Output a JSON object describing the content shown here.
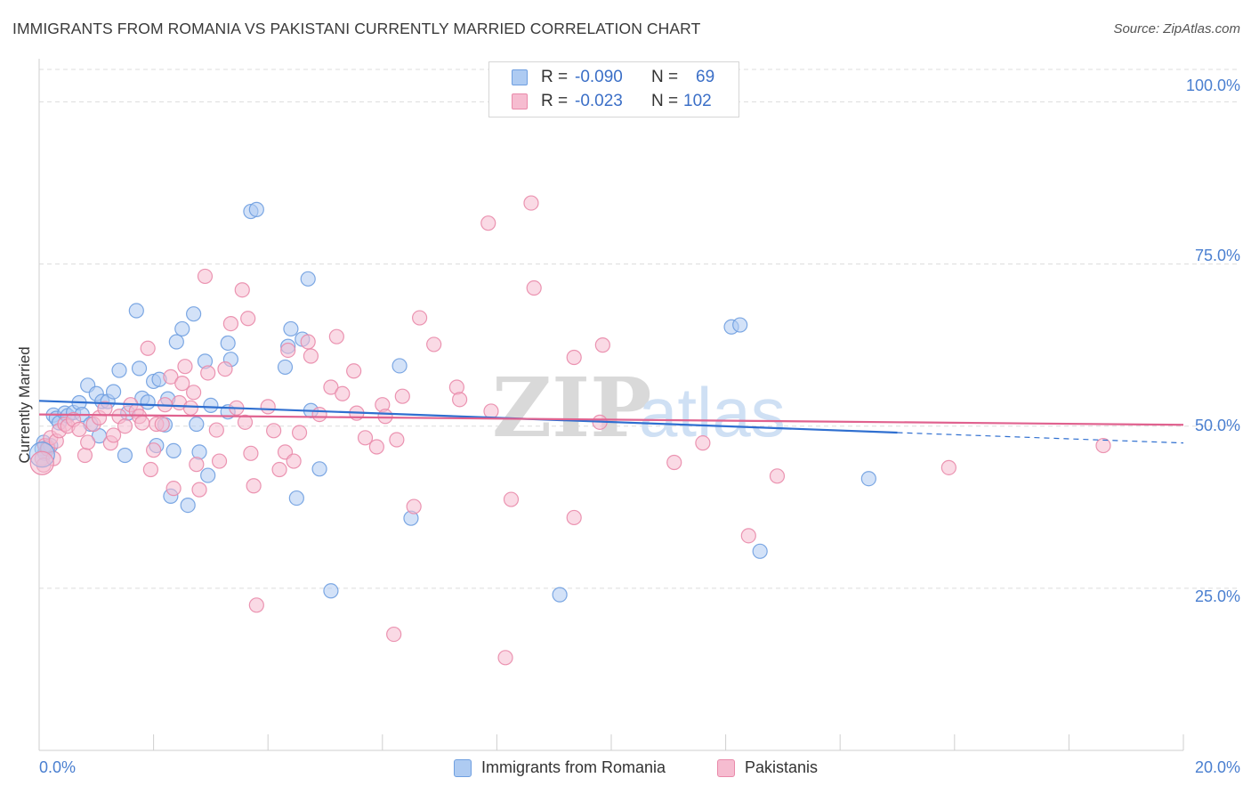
{
  "header": {
    "title": "IMMIGRANTS FROM ROMANIA VS PAKISTANI CURRENTLY MARRIED CORRELATION CHART",
    "source": "Source: ZipAtlas.com"
  },
  "legend": {
    "rows": [
      {
        "r_label": "R =",
        "r_value": "-0.090",
        "n_label": "N =",
        "n_value": "69"
      },
      {
        "r_label": "R =",
        "r_value": "-0.023",
        "n_label": "N =",
        "n_value": "102"
      }
    ]
  },
  "watermark": {
    "zip": "ZIP",
    "atlas": "atlas"
  },
  "colors": {
    "romania_fill": "#aecbf2",
    "romania_stroke": "#6f9fe0",
    "romania_line": "#2f6fd0",
    "pakistani_fill": "#f6bcd0",
    "pakistani_stroke": "#e98aaa",
    "pakistani_line": "#e0628f",
    "tick_label": "#4a7fd0",
    "grid": "#dcdcdc"
  },
  "chart_data": {
    "type": "scatter",
    "title": "IMMIGRANTS FROM ROMANIA VS PAKISTANI CURRENTLY MARRIED CORRELATION CHART",
    "xlabel": "",
    "ylabel": "Currently Married",
    "xlim": [
      0,
      20
    ],
    "ylim": [
      0,
      105
    ],
    "x_tick_labels": [
      "0.0%",
      "20.0%"
    ],
    "y_tick_labels": [
      "25.0%",
      "50.0%",
      "75.0%",
      "100.0%"
    ],
    "y_ticks": [
      25,
      50,
      75,
      100
    ],
    "grid": true,
    "legend_position": "top-center",
    "series": [
      {
        "name": "Immigrants from Romania",
        "R": -0.09,
        "N": 69,
        "trend": {
          "x": [
            0,
            15
          ],
          "y": [
            53.9,
            49.0
          ],
          "dashed_to": [
            20,
            47.4
          ]
        },
        "points": [
          [
            0.05,
            46.5
          ],
          [
            0.08,
            47.5
          ],
          [
            0.1,
            45.8
          ],
          [
            0.15,
            46.8
          ],
          [
            0.2,
            47.0
          ],
          [
            0.25,
            51.7
          ],
          [
            0.3,
            51.2
          ],
          [
            0.35,
            50.5
          ],
          [
            0.45,
            52.0
          ],
          [
            0.5,
            51.6
          ],
          [
            0.6,
            52.1
          ],
          [
            0.7,
            53.6
          ],
          [
            0.75,
            51.8
          ],
          [
            0.85,
            56.3
          ],
          [
            0.9,
            50.3
          ],
          [
            1.0,
            55.0
          ],
          [
            1.05,
            48.5
          ],
          [
            1.1,
            53.8
          ],
          [
            1.2,
            53.8
          ],
          [
            1.3,
            55.3
          ],
          [
            1.4,
            58.6
          ],
          [
            1.5,
            45.5
          ],
          [
            1.55,
            52.0
          ],
          [
            1.7,
            67.8
          ],
          [
            1.75,
            58.9
          ],
          [
            1.8,
            54.3
          ],
          [
            1.9,
            53.7
          ],
          [
            2.0,
            56.9
          ],
          [
            2.05,
            47.0
          ],
          [
            2.1,
            57.2
          ],
          [
            2.2,
            50.2
          ],
          [
            2.25,
            54.2
          ],
          [
            2.3,
            39.2
          ],
          [
            2.35,
            46.2
          ],
          [
            2.4,
            63.0
          ],
          [
            2.5,
            65.0
          ],
          [
            2.6,
            37.8
          ],
          [
            2.7,
            67.3
          ],
          [
            2.75,
            50.3
          ],
          [
            2.8,
            46.0
          ],
          [
            2.9,
            60.0
          ],
          [
            2.95,
            42.4
          ],
          [
            3.3,
            62.8
          ],
          [
            3.35,
            60.3
          ],
          [
            3.0,
            53.2
          ],
          [
            3.3,
            52.2
          ],
          [
            3.7,
            83.1
          ],
          [
            3.8,
            83.4
          ],
          [
            4.3,
            59.1
          ],
          [
            4.35,
            62.3
          ],
          [
            4.4,
            65.0
          ],
          [
            4.5,
            38.9
          ],
          [
            4.6,
            63.4
          ],
          [
            4.7,
            72.7
          ],
          [
            4.75,
            52.4
          ],
          [
            4.9,
            43.4
          ],
          [
            5.1,
            24.6
          ],
          [
            6.3,
            59.3
          ],
          [
            6.5,
            35.8
          ],
          [
            9.1,
            24.0
          ],
          [
            12.1,
            65.3
          ],
          [
            12.25,
            65.6
          ],
          [
            12.6,
            30.7
          ],
          [
            14.5,
            41.9
          ]
        ]
      },
      {
        "name": "Pakistanis",
        "R": -0.023,
        "N": 102,
        "trend": {
          "x": [
            0,
            20
          ],
          "y": [
            51.8,
            50.2
          ]
        },
        "points": [
          [
            0.05,
            45.0
          ],
          [
            0.08,
            44.0
          ],
          [
            0.1,
            47.0
          ],
          [
            0.15,
            46.5
          ],
          [
            0.2,
            48.2
          ],
          [
            0.25,
            45.0
          ],
          [
            0.3,
            47.7
          ],
          [
            0.35,
            49.3
          ],
          [
            0.45,
            50.3
          ],
          [
            0.5,
            50.0
          ],
          [
            0.6,
            51.0
          ],
          [
            0.7,
            49.5
          ],
          [
            0.8,
            45.5
          ],
          [
            0.85,
            47.5
          ],
          [
            0.95,
            50.3
          ],
          [
            1.05,
            51.3
          ],
          [
            1.15,
            52.7
          ],
          [
            1.25,
            47.4
          ],
          [
            1.3,
            48.6
          ],
          [
            1.4,
            51.5
          ],
          [
            1.5,
            50.0
          ],
          [
            1.6,
            53.3
          ],
          [
            1.7,
            52.3
          ],
          [
            1.75,
            51.5
          ],
          [
            1.8,
            50.5
          ],
          [
            1.9,
            62.0
          ],
          [
            1.95,
            43.3
          ],
          [
            2.0,
            46.3
          ],
          [
            2.05,
            50.3
          ],
          [
            2.15,
            50.3
          ],
          [
            2.2,
            53.3
          ],
          [
            2.3,
            57.6
          ],
          [
            2.35,
            40.4
          ],
          [
            2.45,
            53.6
          ],
          [
            2.5,
            56.6
          ],
          [
            2.55,
            59.2
          ],
          [
            2.65,
            52.8
          ],
          [
            2.7,
            55.2
          ],
          [
            2.75,
            44.1
          ],
          [
            2.8,
            40.2
          ],
          [
            2.9,
            73.1
          ],
          [
            2.95,
            58.2
          ],
          [
            3.1,
            49.4
          ],
          [
            3.15,
            44.6
          ],
          [
            3.25,
            58.8
          ],
          [
            3.35,
            65.8
          ],
          [
            3.45,
            52.8
          ],
          [
            3.55,
            71.0
          ],
          [
            3.6,
            50.6
          ],
          [
            3.65,
            66.6
          ],
          [
            3.7,
            45.8
          ],
          [
            3.75,
            40.8
          ],
          [
            3.8,
            22.4
          ],
          [
            4.0,
            53.0
          ],
          [
            4.1,
            49.3
          ],
          [
            4.2,
            43.3
          ],
          [
            4.3,
            46.0
          ],
          [
            4.35,
            61.7
          ],
          [
            4.45,
            44.6
          ],
          [
            4.55,
            49.0
          ],
          [
            4.7,
            63.0
          ],
          [
            4.75,
            60.8
          ],
          [
            4.9,
            51.8
          ],
          [
            5.1,
            56.0
          ],
          [
            5.2,
            63.8
          ],
          [
            5.3,
            55.0
          ],
          [
            5.5,
            58.5
          ],
          [
            5.55,
            52.0
          ],
          [
            5.7,
            48.2
          ],
          [
            5.9,
            46.8
          ],
          [
            6.0,
            53.3
          ],
          [
            6.05,
            51.5
          ],
          [
            6.2,
            17.9
          ],
          [
            6.25,
            47.9
          ],
          [
            6.35,
            54.6
          ],
          [
            6.55,
            37.6
          ],
          [
            6.65,
            66.7
          ],
          [
            6.9,
            62.6
          ],
          [
            7.3,
            56.0
          ],
          [
            7.35,
            54.1
          ],
          [
            7.85,
            81.3
          ],
          [
            7.9,
            52.3
          ],
          [
            8.15,
            14.3
          ],
          [
            8.25,
            38.7
          ],
          [
            8.6,
            84.4
          ],
          [
            8.65,
            71.3
          ],
          [
            9.35,
            60.6
          ],
          [
            9.35,
            35.9
          ],
          [
            9.8,
            50.6
          ],
          [
            9.85,
            62.5
          ],
          [
            11.1,
            44.4
          ],
          [
            11.6,
            47.4
          ],
          [
            12.4,
            33.1
          ],
          [
            12.9,
            42.3
          ],
          [
            15.9,
            43.6
          ],
          [
            18.6,
            47.0
          ]
        ]
      }
    ]
  },
  "bottom_legend": {
    "series_a": "Immigrants from Romania",
    "series_b": "Pakistanis"
  }
}
